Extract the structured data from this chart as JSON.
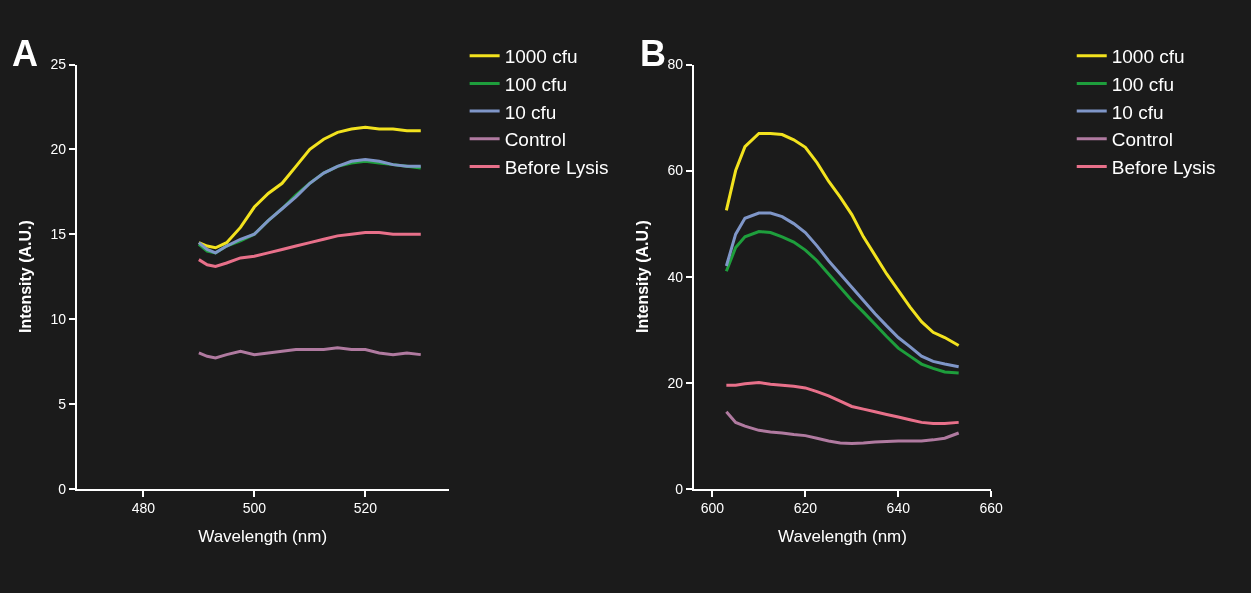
{
  "chart_data": [
    {
      "type": "line",
      "xlabel": "Wavelength (nm)",
      "ylabel": "Intensity (A.U.)",
      "annotations": [
        "A"
      ],
      "legend": "top right",
      "xlim": [
        468,
        535
      ],
      "xticks": [
        480,
        500,
        520
      ],
      "ylim": [
        0,
        25
      ],
      "yticks": [
        0,
        5,
        10,
        15,
        20,
        25
      ],
      "x": [
        490,
        491.5,
        493,
        495,
        497.5,
        500,
        502.5,
        505,
        507.5,
        510,
        512.5,
        515,
        517.5,
        520,
        522.5,
        525,
        527.5,
        530
      ],
      "series": [
        {
          "name": "1000 cfu",
          "color": "#f2e21e",
          "values": [
            14.5,
            14.3,
            14.2,
            14.5,
            15.4,
            16.6,
            17.4,
            18.0,
            19.0,
            20.0,
            20.6,
            21.0,
            21.2,
            21.3,
            21.2,
            21.2,
            21.1,
            21.1
          ]
        },
        {
          "name": "100 cfu",
          "color": "#1e9e3c",
          "values": [
            14.4,
            14.0,
            13.9,
            14.3,
            14.6,
            15.0,
            15.8,
            16.5,
            17.3,
            18.0,
            18.6,
            19.0,
            19.2,
            19.3,
            19.2,
            19.1,
            19.0,
            18.9
          ]
        },
        {
          "name": "10 cfu",
          "color": "#7f96c8",
          "values": [
            14.5,
            14.1,
            13.9,
            14.3,
            14.7,
            15.0,
            15.8,
            16.5,
            17.2,
            18.0,
            18.6,
            19.0,
            19.3,
            19.4,
            19.3,
            19.1,
            19.0,
            19.0
          ]
        },
        {
          "name": "Control",
          "color": "#b07aa0",
          "values": [
            8.0,
            7.8,
            7.7,
            7.9,
            8.1,
            7.9,
            8.0,
            8.1,
            8.2,
            8.2,
            8.2,
            8.3,
            8.2,
            8.2,
            8.0,
            7.9,
            8.0,
            7.9
          ]
        },
        {
          "name": "Before Lysis",
          "color": "#e8708a",
          "values": [
            13.5,
            13.2,
            13.1,
            13.3,
            13.6,
            13.7,
            13.9,
            14.1,
            14.3,
            14.5,
            14.7,
            14.9,
            15.0,
            15.1,
            15.1,
            15.0,
            15.0,
            15.0
          ]
        }
      ]
    },
    {
      "type": "line",
      "xlabel": "Wavelength (nm)",
      "ylabel": "Intensity (A.U.)",
      "annotations": [
        "B"
      ],
      "legend": "top right",
      "xlim": [
        596,
        660
      ],
      "xticks": [
        600,
        620,
        640,
        660
      ],
      "ylim": [
        0,
        80
      ],
      "yticks": [
        0,
        20,
        40,
        60,
        80
      ],
      "x": [
        603,
        605,
        607,
        610,
        612.5,
        615,
        617.5,
        620,
        622.5,
        625,
        627.5,
        630,
        632.5,
        635,
        637.5,
        640,
        642.5,
        645,
        647.5,
        650,
        653
      ],
      "series": [
        {
          "name": "1000 cfu",
          "color": "#f2e21e",
          "values": [
            52.5,
            60,
            64.5,
            67,
            67,
            66.8,
            65.8,
            64.4,
            61.5,
            58,
            55,
            51.7,
            47.5,
            44,
            40.5,
            37.4,
            34.3,
            31.5,
            29.5,
            28.5,
            27
          ]
        },
        {
          "name": "100 cfu",
          "color": "#1e9e3c",
          "values": [
            41,
            45.5,
            47.5,
            48.5,
            48.3,
            47.5,
            46.5,
            45,
            43,
            40.5,
            38,
            35.5,
            33.3,
            31,
            28.7,
            26.5,
            25,
            23.5,
            22.7,
            22,
            21.8
          ]
        },
        {
          "name": "10 cfu",
          "color": "#7f96c8",
          "values": [
            42,
            48,
            51,
            52,
            52,
            51.3,
            50,
            48.3,
            45.8,
            43,
            40.5,
            38,
            35.5,
            33,
            30.7,
            28.5,
            26.8,
            25,
            24,
            23.5,
            23
          ]
        },
        {
          "name": "Control",
          "color": "#b07aa0",
          "values": [
            14.5,
            12.5,
            11.8,
            11,
            10.7,
            10.5,
            10.2,
            10,
            9.5,
            9,
            8.6,
            8.5,
            8.6,
            8.8,
            8.9,
            9,
            9,
            9,
            9.2,
            9.5,
            10.5
          ]
        },
        {
          "name": "Before Lysis",
          "color": "#e8708a",
          "values": [
            19.5,
            19.5,
            19.8,
            20,
            19.7,
            19.5,
            19.3,
            19,
            18.3,
            17.5,
            16.5,
            15.5,
            15,
            14.5,
            14,
            13.5,
            13,
            12.5,
            12.3,
            12.3,
            12.5
          ]
        }
      ]
    }
  ]
}
